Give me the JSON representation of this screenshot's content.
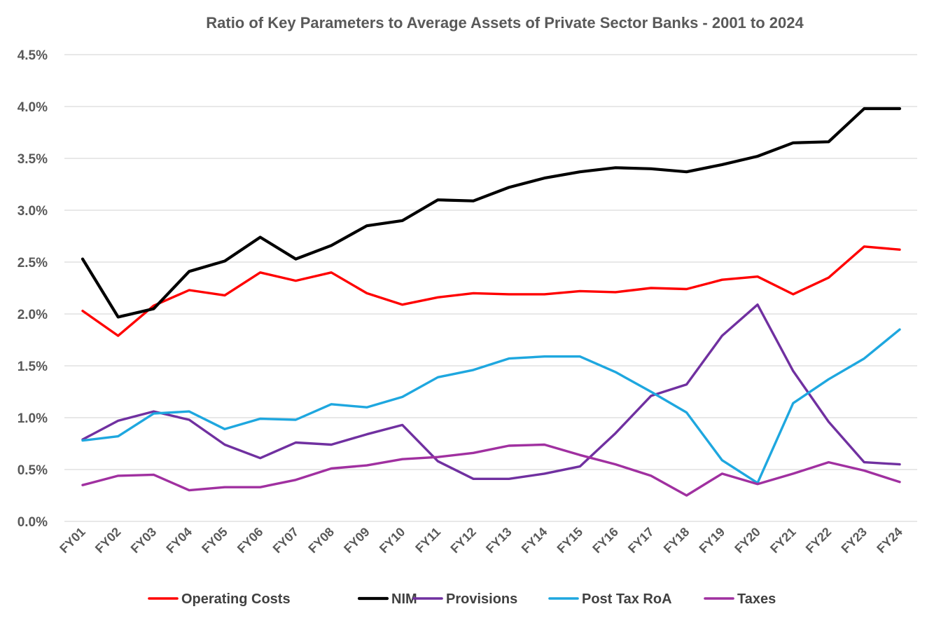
{
  "chart_data": {
    "type": "line",
    "title": "Ratio of Key Parameters to Average Assets of Private Sector Banks  - 2001 to 2024",
    "xlabel": "",
    "ylabel": "",
    "ylim": [
      0,
      4.5
    ],
    "yticks": [
      "0.0%",
      "0.5%",
      "1.0%",
      "1.5%",
      "2.0%",
      "2.5%",
      "3.0%",
      "3.5%",
      "4.0%",
      "4.5%"
    ],
    "grid": true,
    "legend_position": "bottom",
    "categories": [
      "FY01",
      "FY02",
      "FY03",
      "FY04",
      "FY05",
      "FY06",
      "FY07",
      "FY08",
      "FY09",
      "FY10",
      "FY11",
      "FY12",
      "FY13",
      "FY14",
      "FY15",
      "FY16",
      "FY17",
      "FY18",
      "FY19",
      "FY20",
      "FY21",
      "FY22",
      "FY23",
      "FY24"
    ],
    "series": [
      {
        "name": "Operating Costs",
        "color": "#ff0000",
        "values": [
          2.03,
          1.79,
          2.08,
          2.23,
          2.18,
          2.4,
          2.32,
          2.4,
          2.2,
          2.09,
          2.16,
          2.2,
          2.19,
          2.19,
          2.22,
          2.21,
          2.25,
          2.24,
          2.33,
          2.36,
          2.19,
          2.35,
          2.65,
          2.62
        ]
      },
      {
        "name": "NIM",
        "color": "#000000",
        "values": [
          2.53,
          1.97,
          2.05,
          2.41,
          2.51,
          2.74,
          2.53,
          2.66,
          2.85,
          2.9,
          3.1,
          3.09,
          3.22,
          3.31,
          3.37,
          3.41,
          3.4,
          3.37,
          3.44,
          3.52,
          3.65,
          3.66,
          3.98,
          3.98
        ]
      },
      {
        "name": "Provisions",
        "color": "#7030a0",
        "values": [
          0.79,
          0.97,
          1.06,
          0.98,
          0.74,
          0.61,
          0.76,
          0.74,
          0.84,
          0.93,
          0.58,
          0.41,
          0.41,
          0.46,
          0.53,
          0.85,
          1.21,
          1.32,
          1.79,
          2.09,
          1.45,
          0.96,
          0.57,
          0.55
        ]
      },
      {
        "name": "Post Tax RoA",
        "color": "#1ea7df",
        "values": [
          0.78,
          0.82,
          1.04,
          1.06,
          0.89,
          0.99,
          0.98,
          1.13,
          1.1,
          1.2,
          1.39,
          1.46,
          1.57,
          1.59,
          1.59,
          1.44,
          1.25,
          1.05,
          0.59,
          0.37,
          1.14,
          1.37,
          1.57,
          1.85
        ]
      },
      {
        "name": "Taxes",
        "color": "#a030a0",
        "values": [
          0.35,
          0.44,
          0.45,
          0.3,
          0.33,
          0.33,
          0.4,
          0.51,
          0.54,
          0.6,
          0.62,
          0.66,
          0.73,
          0.74,
          0.64,
          0.55,
          0.44,
          0.25,
          0.46,
          0.36,
          0.46,
          0.57,
          0.49,
          0.38
        ]
      }
    ]
  }
}
